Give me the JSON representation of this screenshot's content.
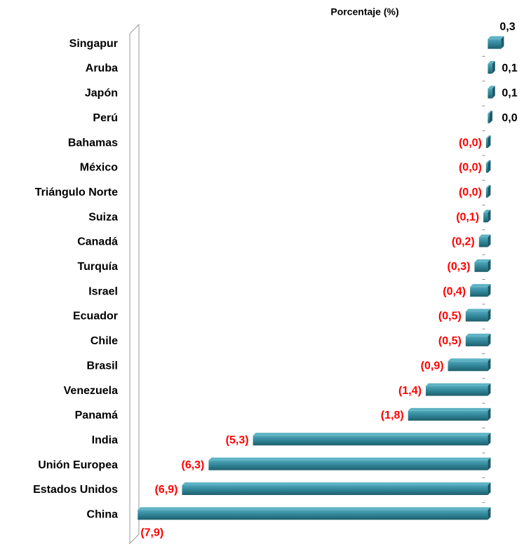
{
  "chart_data": {
    "type": "bar",
    "orientation": "horizontal",
    "axis_title": "Porcentaje (%)",
    "categories": [
      "Singapur",
      "Aruba",
      "Japón",
      "Perú",
      "Bahamas",
      "México",
      "Triángulo Norte",
      "Suiza",
      "Canadá",
      "Turquía",
      "Israel",
      "Ecuador",
      "Chile",
      "Brasil",
      "Venezuela",
      "Panamá",
      "India",
      "Unión Europea",
      "Estados Unidos",
      "China"
    ],
    "values": [
      0.3,
      0.1,
      0.1,
      0.04,
      -0.04,
      -0.04,
      -0.04,
      -0.1,
      -0.2,
      -0.3,
      -0.4,
      -0.5,
      -0.5,
      -0.9,
      -1.4,
      -1.8,
      -5.3,
      -6.3,
      -6.9,
      -7.9
    ],
    "value_labels": [
      "0,3",
      "0,1",
      "0,1",
      "0,0",
      "(0,0)",
      "(0,0)",
      "(0,0)",
      "(0,1)",
      "(0,2)",
      "(0,3)",
      "(0,4)",
      "(0,5)",
      "(0,5)",
      "(0,9)",
      "(1,4)",
      "(1,8)",
      "(5,3)",
      "(6,3)",
      "(6,9)",
      "(7,9)"
    ],
    "color": "#2f8496",
    "negative_label_color": "#ff0000",
    "positive_label_color": "#000000",
    "xlim": [
      -8,
      0.5
    ]
  }
}
